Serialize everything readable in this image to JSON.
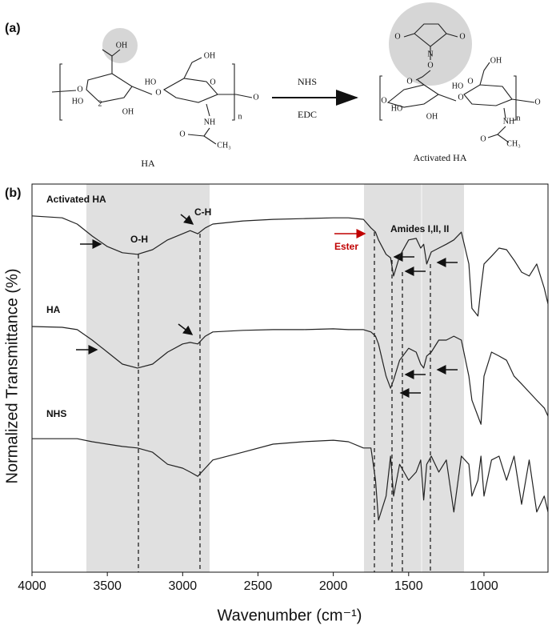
{
  "scheme": {
    "label": "(a)",
    "reactant": "HA",
    "reagent_top": "NHS",
    "reagent_bottom": "EDC",
    "product": "Activated HA",
    "reactant_atoms": [
      "OH",
      "O",
      "HO",
      "2",
      "OH",
      "O",
      "OH",
      "HO",
      "O",
      "NH",
      "O",
      "CH₃",
      "n",
      "O"
    ],
    "product_atoms": [
      "O",
      "N",
      "O",
      "O",
      "O",
      "O",
      "HO",
      "OH",
      "O",
      "OH",
      "HO",
      "O",
      "NH",
      "O",
      "CH₃",
      "n",
      "O"
    ]
  },
  "chart_data": {
    "type": "line",
    "label": "(b)",
    "x_label": "Wavenumber (cm⁻¹)",
    "y_label": "Normalized Transmittance (%)",
    "annotations": [
      "O-H",
      "C-H",
      "Ester",
      "Amides I,II, II"
    ],
    "xlim": [
      4000,
      575
    ],
    "xticks": [
      4000,
      3500,
      3000,
      2500,
      2000,
      1500,
      1000
    ],
    "ylim": [
      0,
      100
    ],
    "x": [
      4000,
      3800,
      3700,
      3600,
      3500,
      3400,
      3300,
      3200,
      3100,
      3000,
      2950,
      2900,
      2850,
      2800,
      2600,
      2400,
      2200,
      2000,
      1900,
      1800,
      1750,
      1720,
      1700,
      1650,
      1620,
      1600,
      1560,
      1500,
      1450,
      1420,
      1400,
      1380,
      1350,
      1300,
      1250,
      1200,
      1150,
      1100,
      1080,
      1040,
      1020,
      1000,
      950,
      900,
      850,
      800,
      750,
      700,
      650,
      600,
      575
    ],
    "series": [
      {
        "name": "Activated HA",
        "color": "#222222",
        "values": [
          91.8,
          91.3,
          89.7,
          86.6,
          83.9,
          82.3,
          81.9,
          83.1,
          85.6,
          87.2,
          88.0,
          87.2,
          88.7,
          89.7,
          90.5,
          90.9,
          91.1,
          91.3,
          91.3,
          90.9,
          88.7,
          87.6,
          85.6,
          81.9,
          81.0,
          76.3,
          81.4,
          85.6,
          86.0,
          83.5,
          84.5,
          79.4,
          82.5,
          83.5,
          84.5,
          85.6,
          87.6,
          79.4,
          68.0,
          66.0,
          73.2,
          79.4,
          81.4,
          83.5,
          83.1,
          80.4,
          77.3,
          76.3,
          79.4,
          73.2,
          69.1
        ]
      },
      {
        "name": "HA",
        "color": "#222222",
        "values": [
          63.3,
          63.1,
          62.5,
          59.8,
          56.7,
          53.6,
          52.6,
          53.6,
          56.7,
          58.8,
          59.2,
          58.8,
          60.8,
          61.9,
          62.3,
          62.5,
          62.5,
          62.7,
          62.5,
          62.5,
          61.9,
          60.8,
          58.8,
          50.5,
          47.4,
          49.5,
          54.6,
          57.7,
          56.7,
          53.6,
          52.6,
          55.7,
          56.7,
          59.8,
          59.8,
          60.8,
          59.8,
          50.5,
          44.3,
          40.2,
          38.1,
          50.5,
          56.7,
          55.7,
          54.6,
          50.5,
          48.5,
          46.4,
          44.3,
          42.3,
          40.2
        ]
      },
      {
        "name": "NHS",
        "color": "#222222",
        "values": [
          34.4,
          34.4,
          34.4,
          33.6,
          33.0,
          32.4,
          32.0,
          30.9,
          27.8,
          26.8,
          25.8,
          24.7,
          26.8,
          28.9,
          30.9,
          33.0,
          33.6,
          34.0,
          33.6,
          32.0,
          32.0,
          23.7,
          13.4,
          19.6,
          29.9,
          19.6,
          27.8,
          23.7,
          25.8,
          28.9,
          18.6,
          27.8,
          29.9,
          25.8,
          28.9,
          15.5,
          29.9,
          27.8,
          19.6,
          23.7,
          29.9,
          19.6,
          28.9,
          29.9,
          23.7,
          29.9,
          17.5,
          28.9,
          15.5,
          19.6,
          15.5
        ]
      }
    ]
  }
}
